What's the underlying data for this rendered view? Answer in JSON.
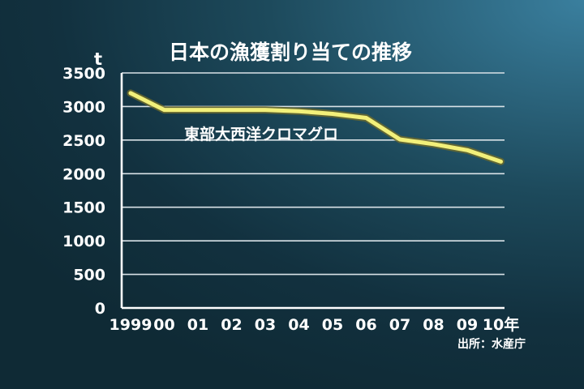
{
  "chart_data": {
    "type": "line",
    "title": "日本の漁獲割り当ての推移",
    "ylabel": "t",
    "ylim": [
      0,
      3500
    ],
    "yticks": [
      0,
      500,
      1000,
      1500,
      2000,
      2500,
      3000,
      3500
    ],
    "grid": true,
    "categories": [
      "1999",
      "00",
      "01",
      "02",
      "03",
      "04",
      "05",
      "06",
      "07",
      "08",
      "09",
      "10年"
    ],
    "series": [
      {
        "name": "東部大西洋クロマグロ",
        "values": [
          3200,
          2950,
          2950,
          2950,
          2950,
          2930,
          2890,
          2830,
          2510,
          2440,
          2350,
          2180
        ]
      }
    ],
    "source": "出所：水産庁",
    "line_color": "#f2f07a"
  }
}
